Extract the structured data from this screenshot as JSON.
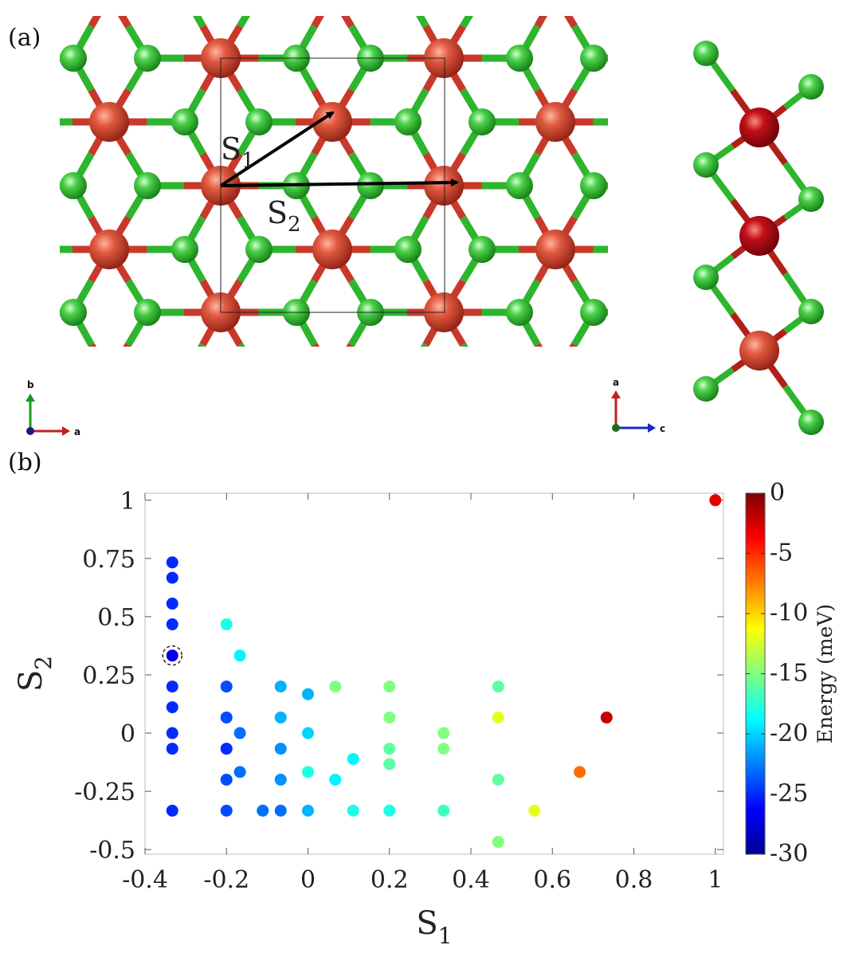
{
  "panel_a": {
    "label": "(a)",
    "vectors": [
      {
        "name": "S",
        "sub": "1"
      },
      {
        "name": "S",
        "sub": "2"
      }
    ],
    "axes_top": {
      "vertical": "b",
      "horizontal": "a",
      "origin": "c"
    },
    "axes_side": {
      "vertical": "a",
      "horizontal": "c",
      "origin": "b"
    },
    "colors": {
      "metal": "#c8392b",
      "halide": "#2db52d",
      "bond_metal": "#c8392b",
      "bond_halide": "#2db52d"
    }
  },
  "panel_b": {
    "label": "(b)"
  },
  "chart_data": {
    "type": "scatter",
    "xlabel": {
      "base": "S",
      "sub": "1"
    },
    "ylabel": {
      "base": "S",
      "sub": "2"
    },
    "xlim": [
      -0.4,
      1.02
    ],
    "ylim": [
      -0.52,
      1.03
    ],
    "xticks": [
      -0.4,
      -0.2,
      0,
      0.2,
      0.4,
      0.6,
      0.8,
      1
    ],
    "xtick_labels": [
      "-0.4",
      "-0.2",
      "0",
      "0.2",
      "0.4",
      "0.6",
      "0.8",
      "1"
    ],
    "yticks": [
      -0.5,
      -0.25,
      0,
      0.25,
      0.5,
      0.75,
      1
    ],
    "ytick_labels": [
      "-0.5",
      "-0.25",
      "0",
      "0.25",
      "0.5",
      "0.75",
      "1"
    ],
    "colorbar": {
      "label": "Energy (meV)",
      "range": [
        -30,
        0
      ],
      "ticks": [
        0,
        -5,
        -10,
        -15,
        -20,
        -25,
        -30
      ],
      "tick_labels": [
        "0",
        "-5",
        "-10",
        "-15",
        "-20",
        "-25",
        "-30"
      ],
      "colormap": "jet"
    },
    "highlighted_point": {
      "x": -0.333,
      "y": 0.333
    },
    "points": [
      {
        "x": 1.0,
        "y": 1.0,
        "e": -3
      },
      {
        "x": -0.333,
        "y": 0.733,
        "e": -25
      },
      {
        "x": -0.333,
        "y": 0.667,
        "e": -25
      },
      {
        "x": -0.333,
        "y": 0.556,
        "e": -25
      },
      {
        "x": -0.333,
        "y": 0.467,
        "e": -25
      },
      {
        "x": -0.333,
        "y": 0.333,
        "e": -27
      },
      {
        "x": -0.333,
        "y": 0.2,
        "e": -25
      },
      {
        "x": -0.333,
        "y": 0.111,
        "e": -25
      },
      {
        "x": -0.333,
        "y": 0.0,
        "e": -25
      },
      {
        "x": -0.333,
        "y": -0.067,
        "e": -25
      },
      {
        "x": -0.333,
        "y": -0.333,
        "e": -25
      },
      {
        "x": -0.2,
        "y": 0.467,
        "e": -18
      },
      {
        "x": -0.2,
        "y": 0.2,
        "e": -24
      },
      {
        "x": -0.2,
        "y": 0.067,
        "e": -24
      },
      {
        "x": -0.2,
        "y": -0.067,
        "e": -25
      },
      {
        "x": -0.2,
        "y": -0.2,
        "e": -24
      },
      {
        "x": -0.2,
        "y": -0.333,
        "e": -24
      },
      {
        "x": -0.167,
        "y": 0.333,
        "e": -19
      },
      {
        "x": -0.167,
        "y": 0.0,
        "e": -23
      },
      {
        "x": -0.167,
        "y": -0.167,
        "e": -23
      },
      {
        "x": -0.111,
        "y": -0.333,
        "e": -23
      },
      {
        "x": -0.067,
        "y": 0.2,
        "e": -21
      },
      {
        "x": -0.067,
        "y": 0.067,
        "e": -21
      },
      {
        "x": -0.067,
        "y": -0.067,
        "e": -22
      },
      {
        "x": -0.067,
        "y": -0.2,
        "e": -22
      },
      {
        "x": -0.067,
        "y": -0.333,
        "e": -23
      },
      {
        "x": 0.0,
        "y": 0.167,
        "e": -21
      },
      {
        "x": 0.0,
        "y": 0.0,
        "e": -20
      },
      {
        "x": 0.0,
        "y": -0.167,
        "e": -18
      },
      {
        "x": 0.0,
        "y": -0.333,
        "e": -21
      },
      {
        "x": 0.067,
        "y": 0.2,
        "e": -15
      },
      {
        "x": 0.067,
        "y": -0.2,
        "e": -19
      },
      {
        "x": 0.111,
        "y": -0.111,
        "e": -19
      },
      {
        "x": 0.111,
        "y": -0.333,
        "e": -18
      },
      {
        "x": 0.2,
        "y": 0.2,
        "e": -15
      },
      {
        "x": 0.2,
        "y": 0.067,
        "e": -15
      },
      {
        "x": 0.2,
        "y": -0.067,
        "e": -16
      },
      {
        "x": 0.2,
        "y": -0.133,
        "e": -16
      },
      {
        "x": 0.2,
        "y": -0.333,
        "e": -18
      },
      {
        "x": 0.333,
        "y": 0.0,
        "e": -15
      },
      {
        "x": 0.333,
        "y": -0.067,
        "e": -15
      },
      {
        "x": 0.333,
        "y": -0.333,
        "e": -17
      },
      {
        "x": 0.467,
        "y": 0.2,
        "e": -16
      },
      {
        "x": 0.467,
        "y": 0.067,
        "e": -12
      },
      {
        "x": 0.467,
        "y": -0.2,
        "e": -16
      },
      {
        "x": 0.467,
        "y": -0.467,
        "e": -15
      },
      {
        "x": 0.556,
        "y": -0.333,
        "e": -12
      },
      {
        "x": 0.667,
        "y": -0.167,
        "e": -7
      },
      {
        "x": 0.733,
        "y": 0.067,
        "e": -2
      }
    ]
  }
}
